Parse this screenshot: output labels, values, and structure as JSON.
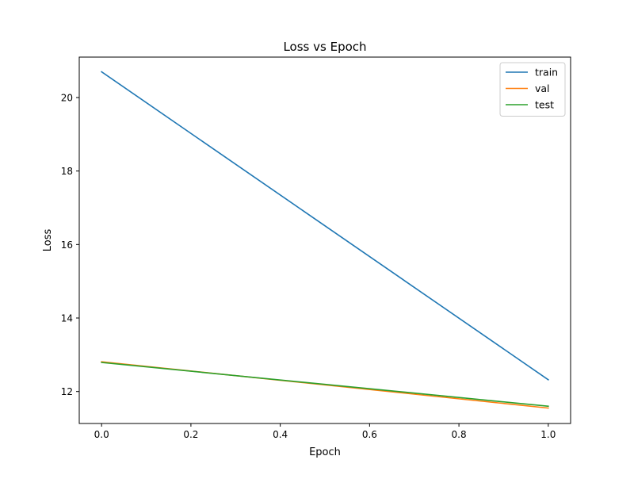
{
  "chart_data": {
    "type": "line",
    "title": "Loss vs Epoch",
    "xlabel": "Epoch",
    "ylabel": "Loss",
    "xlim": [
      -0.05,
      1.05
    ],
    "ylim": [
      11.13,
      21.1
    ],
    "xticks": [
      0.0,
      0.2,
      0.4,
      0.6,
      0.8,
      1.0
    ],
    "xtick_labels": [
      "0.0",
      "0.2",
      "0.4",
      "0.6",
      "0.8",
      "1.0"
    ],
    "yticks": [
      12,
      14,
      16,
      18,
      20
    ],
    "ytick_labels": [
      "12",
      "14",
      "16",
      "18",
      "20"
    ],
    "grid": false,
    "legend_position": "top-right",
    "x": [
      0,
      1
    ],
    "series": [
      {
        "name": "train",
        "color": "#1f77b4",
        "values": [
          20.7,
          12.32
        ]
      },
      {
        "name": "val",
        "color": "#ff7f0e",
        "values": [
          12.81,
          11.55
        ]
      },
      {
        "name": "test",
        "color": "#2ca02c",
        "values": [
          12.79,
          11.6
        ]
      }
    ]
  }
}
